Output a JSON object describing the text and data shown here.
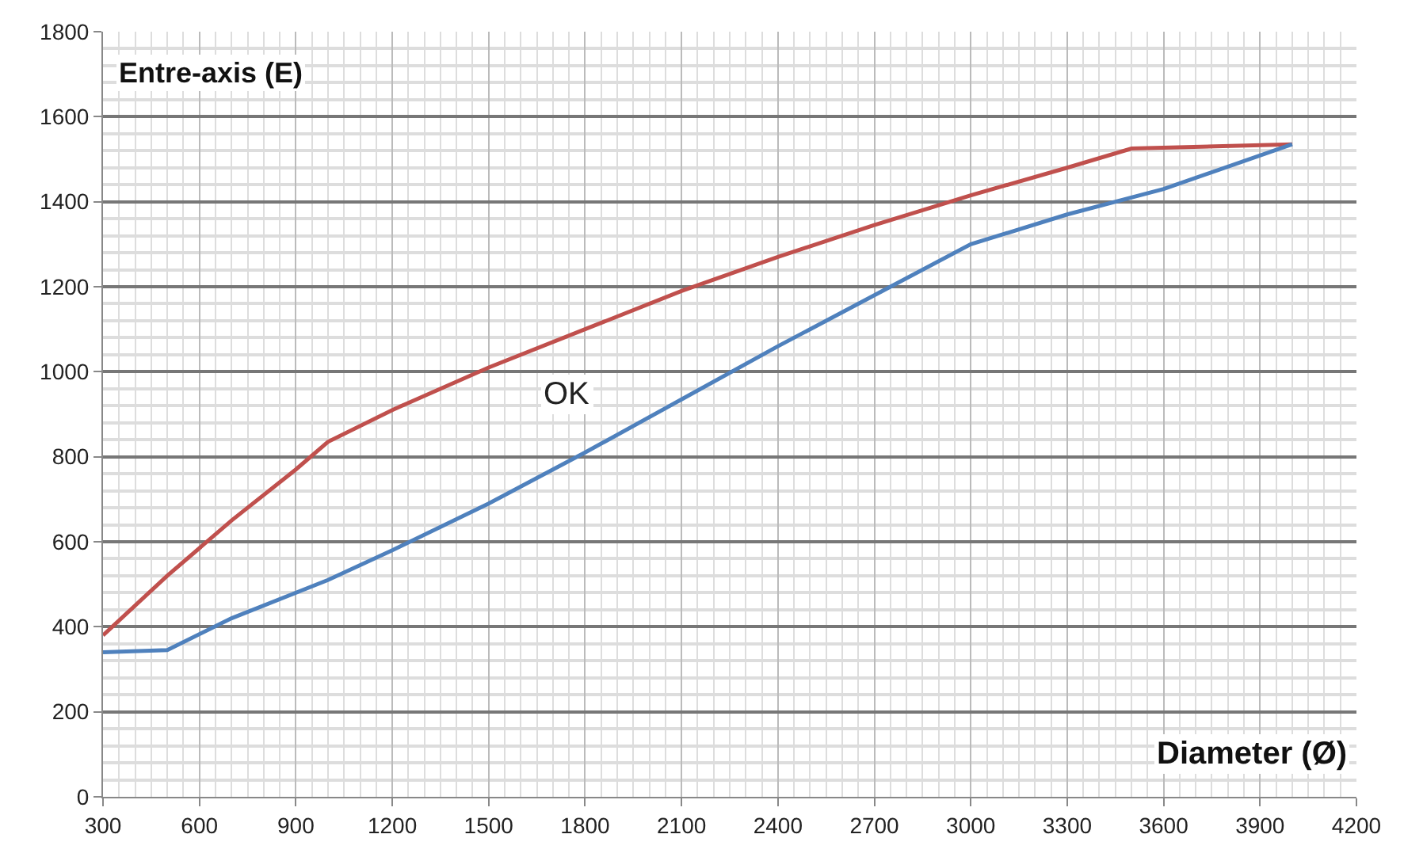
{
  "chart_data": {
    "type": "line",
    "xlabel": "Diameter (Ø)",
    "ylabel": "Entre-axis (E)",
    "annotations": [
      "OK"
    ],
    "series": [
      {
        "color": "#c0504d",
        "x": [
          300,
          500,
          700,
          900,
          1000,
          1200,
          1500,
          1800,
          2100,
          2400,
          2700,
          3000,
          3300,
          3500,
          4000
        ],
        "values": [
          380,
          520,
          650,
          770,
          835,
          910,
          1010,
          1100,
          1190,
          1270,
          1345,
          1415,
          1480,
          1525,
          1535
        ]
      },
      {
        "color": "#4f81bd",
        "x": [
          300,
          500,
          700,
          1000,
          1200,
          1500,
          1800,
          2100,
          2400,
          2700,
          3000,
          3300,
          3600,
          4000
        ],
        "values": [
          340,
          345,
          420,
          510,
          580,
          690,
          810,
          935,
          1060,
          1180,
          1300,
          1370,
          1430,
          1535
        ]
      }
    ],
    "xlim": [
      300,
      4200
    ],
    "xticks": [
      300,
      600,
      900,
      1200,
      1500,
      1800,
      2100,
      2400,
      2700,
      3000,
      3300,
      3600,
      3900,
      4200
    ],
    "ylim": [
      0,
      1800
    ],
    "yticks": [
      0,
      200,
      400,
      600,
      800,
      1000,
      1200,
      1400,
      1600,
      1800
    ],
    "grid": true,
    "marker": "none",
    "line_style": "solid"
  }
}
